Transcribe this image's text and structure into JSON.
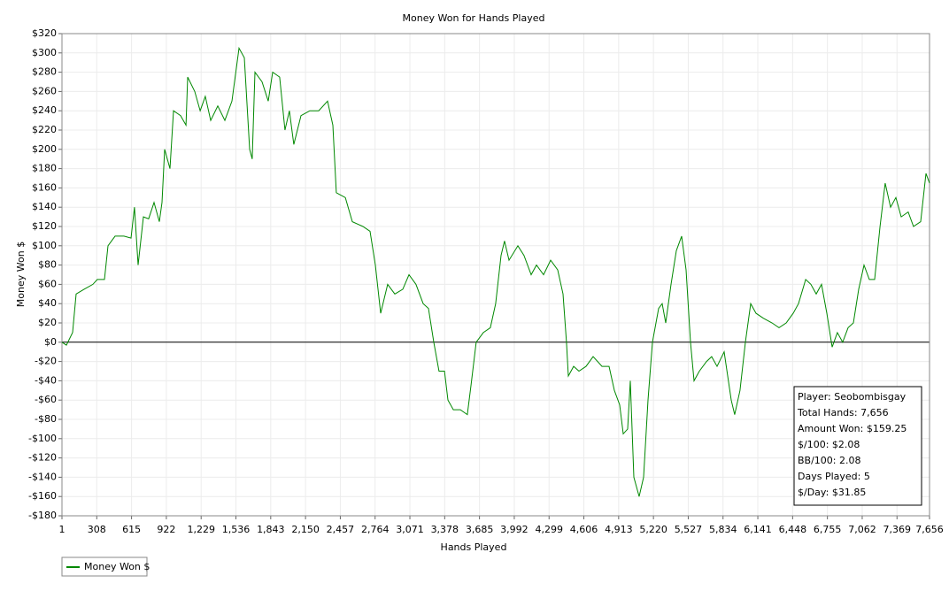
{
  "chart_data": {
    "type": "line",
    "title": "Money Won for Hands Played",
    "x_label": "Hands Played",
    "y_label": "Money Won $",
    "grid": true,
    "legend": "bottom-left",
    "xlim": [
      1,
      7656
    ],
    "ylim": [
      -180,
      320
    ],
    "xticks": [
      1,
      308,
      615,
      922,
      {
        "value": 1229,
        "label": "1,229"
      },
      {
        "value": 1536,
        "label": "1,536"
      },
      {
        "value": 1843,
        "label": "1,843"
      },
      {
        "value": 2150,
        "label": "2,150"
      },
      {
        "value": 2457,
        "label": "2,457"
      },
      {
        "value": 2764,
        "label": "2,764"
      },
      {
        "value": 3071,
        "label": "3,071"
      },
      {
        "value": 3378,
        "label": "3,378"
      },
      {
        "value": 3685,
        "label": "3,685"
      },
      {
        "value": 3992,
        "label": "3,992"
      },
      {
        "value": 4299,
        "label": "4,299"
      },
      {
        "value": 4606,
        "label": "4,606"
      },
      {
        "value": 4913,
        "label": "4,913"
      },
      {
        "value": 5220,
        "label": "5,220"
      },
      {
        "value": 5527,
        "label": "5,527"
      },
      {
        "value": 5834,
        "label": "5,834"
      },
      {
        "value": 6141,
        "label": "6,141"
      },
      {
        "value": 6448,
        "label": "6,448"
      },
      {
        "value": 6755,
        "label": "6,755"
      },
      {
        "value": 7062,
        "label": "7,062"
      },
      {
        "value": 7369,
        "label": "7,369"
      },
      {
        "value": 7656,
        "label": "7,656"
      }
    ],
    "yticks": [
      {
        "value": 320,
        "label": "$320"
      },
      {
        "value": 300,
        "label": "$300"
      },
      {
        "value": 280,
        "label": "$280"
      },
      {
        "value": 260,
        "label": "$260"
      },
      {
        "value": 240,
        "label": "$240"
      },
      {
        "value": 220,
        "label": "$220"
      },
      {
        "value": 200,
        "label": "$200"
      },
      {
        "value": 180,
        "label": "$180"
      },
      {
        "value": 160,
        "label": "$160"
      },
      {
        "value": 140,
        "label": "$140"
      },
      {
        "value": 120,
        "label": "$120"
      },
      {
        "value": 100,
        "label": "$100"
      },
      {
        "value": 80,
        "label": "$80"
      },
      {
        "value": 60,
        "label": "$60"
      },
      {
        "value": 40,
        "label": "$40"
      },
      {
        "value": 20,
        "label": "$20"
      },
      {
        "value": 0,
        "label": "$0"
      },
      {
        "value": -20,
        "label": "-$20"
      },
      {
        "value": -40,
        "label": "-$40"
      },
      {
        "value": -60,
        "label": "-$60"
      },
      {
        "value": -80,
        "label": "-$80"
      },
      {
        "value": -100,
        "label": "-$100"
      },
      {
        "value": -120,
        "label": "-$120"
      },
      {
        "value": -140,
        "label": "-$140"
      },
      {
        "value": -160,
        "label": "-$160"
      },
      {
        "value": -180,
        "label": "-$180"
      }
    ],
    "x": [
      1,
      40,
      95,
      126,
      196,
      274,
      313,
      376,
      407,
      470,
      548,
      610,
      641,
      673,
      720,
      766,
      813,
      860,
      884,
      907,
      954,
      985,
      1048,
      1095,
      1110,
      1173,
      1220,
      1266,
      1313,
      1376,
      1438,
      1501,
      1563,
      1610,
      1657,
      1680,
      1704,
      1766,
      1821,
      1860,
      1922,
      1969,
      2008,
      2047,
      2110,
      2188,
      2266,
      2344,
      2391,
      2422,
      2501,
      2563,
      2657,
      2719,
      2766,
      2813,
      2875,
      2938,
      3008,
      3063,
      3125,
      3188,
      3235,
      3282,
      3328,
      3376,
      3407,
      3454,
      3516,
      3578,
      3610,
      3656,
      3719,
      3781,
      3828,
      3875,
      3906,
      3946,
      4024,
      4078,
      4141,
      4188,
      4250,
      4313,
      4375,
      4422,
      4453,
      4469,
      4516,
      4563,
      4625,
      4688,
      4766,
      4828,
      4875,
      4922,
      4953,
      4992,
      5016,
      5047,
      5094,
      5133,
      5172,
      5211,
      5266,
      5297,
      5328,
      5375,
      5422,
      5469,
      5508,
      5547,
      5578,
      5625,
      5688,
      5734,
      5781,
      5844,
      5906,
      5937,
      5984,
      6031,
      6078,
      6125,
      6188,
      6266,
      6328,
      6391,
      6453,
      6500,
      6563,
      6609,
      6656,
      6703,
      6750,
      6797,
      6843,
      6890,
      6937,
      6984,
      7031,
      7078,
      7125,
      7172,
      7219,
      7265,
      7312,
      7359,
      7406,
      7468,
      7515,
      7578,
      7625,
      7656
    ],
    "series": [
      {
        "name": "Money Won $",
        "color": "#008800",
        "values": [
          0,
          -3,
          10,
          50,
          55,
          60,
          65,
          65,
          100,
          110,
          110,
          108,
          140,
          80,
          130,
          128,
          145,
          125,
          145,
          200,
          180,
          240,
          235,
          225,
          275,
          260,
          240,
          255,
          230,
          245,
          230,
          250,
          305,
          295,
          200,
          190,
          280,
          270,
          250,
          280,
          275,
          220,
          240,
          205,
          235,
          240,
          240,
          250,
          225,
          155,
          150,
          125,
          120,
          115,
          80,
          30,
          60,
          50,
          55,
          70,
          60,
          40,
          35,
          0,
          -30,
          -30,
          -60,
          -70,
          -70,
          -75,
          -45,
          0,
          10,
          15,
          40,
          90,
          105,
          85,
          100,
          90,
          70,
          80,
          70,
          85,
          75,
          50,
          0,
          -35,
          -25,
          -30,
          -25,
          -15,
          -25,
          -25,
          -50,
          -65,
          -95,
          -90,
          -40,
          -140,
          -160,
          -140,
          -60,
          0,
          35,
          40,
          20,
          60,
          95,
          110,
          75,
          0,
          -40,
          -30,
          -20,
          -15,
          -25,
          -10,
          -60,
          -75,
          -50,
          0,
          40,
          30,
          25,
          20,
          15,
          20,
          30,
          40,
          65,
          60,
          50,
          60,
          30,
          -5,
          10,
          0,
          15,
          20,
          55,
          80,
          65,
          65,
          120,
          165,
          140,
          150,
          130,
          135,
          120,
          125,
          175,
          165
        ]
      }
    ],
    "info_box": [
      "Player: Seobombisgay",
      "Total Hands: 7,656",
      "Amount Won: $159.25",
      "$/100: $2.08",
      "BB/100: 2.08",
      "Days Played: 5",
      "$/Day: $31.85"
    ]
  }
}
